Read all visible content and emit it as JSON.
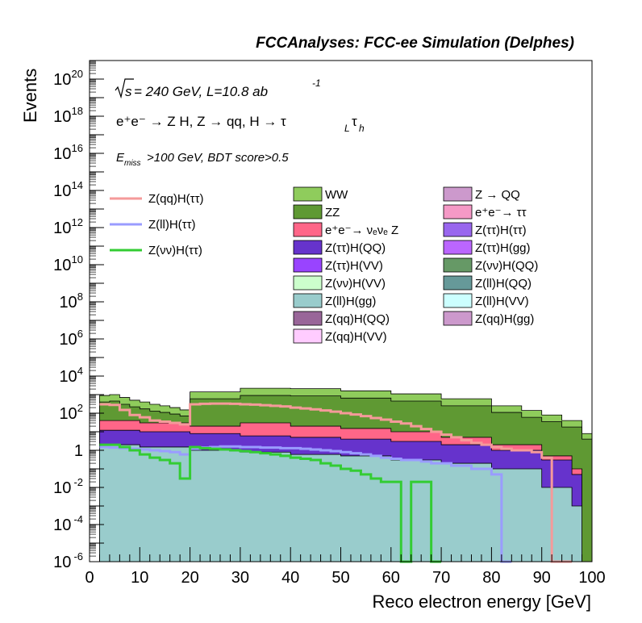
{
  "chart_data": {
    "type": "area",
    "title": "FCCAnalyses: FCC-ee Simulation (Delphes)",
    "xlabel": "Reco electron energy [GeV]",
    "ylabel": "Events",
    "xlim": [
      0,
      100
    ],
    "ylim": [
      1e-06,
      1e+21
    ],
    "log_y": true,
    "grid": false,
    "legend_position": "top",
    "x_ticks": [
      "0",
      "10",
      "20",
      "30",
      "40",
      "50",
      "60",
      "70",
      "80",
      "90",
      "100"
    ],
    "y_ticks": [
      {
        "base": "10",
        "exp": "-6"
      },
      {
        "base": "10",
        "exp": "-4"
      },
      {
        "base": "10",
        "exp": "-2"
      },
      {
        "base": "1",
        "exp": ""
      },
      {
        "base": "10",
        "exp": "2"
      },
      {
        "base": "10",
        "exp": "4"
      },
      {
        "base": "10",
        "exp": "6"
      },
      {
        "base": "10",
        "exp": "8"
      },
      {
        "base": "10",
        "exp": "10"
      },
      {
        "base": "10",
        "exp": "12"
      },
      {
        "base": "10",
        "exp": "14"
      },
      {
        "base": "10",
        "exp": "16"
      },
      {
        "base": "10",
        "exp": "18"
      },
      {
        "base": "10",
        "exp": "20"
      }
    ],
    "annotations": {
      "line1_sqrt": "s",
      "line1_text": " = 240 GeV, L=10.8 ab",
      "line1_exp": "-1",
      "line2_text": "e⁺e⁻ → Z H, Z → qq, H → τ",
      "line2_sub1": "L",
      "line2_tau": "τ",
      "line2_sub2": "h",
      "line3_E": "E",
      "line3_sub": "miss",
      "line3_text": ">100 GeV, BDT score>0.5"
    },
    "signal_legend": [
      {
        "name": "Z(qq)H(ττ)",
        "color": "#f59a9a"
      },
      {
        "name": "Z(ll)H(ττ)",
        "color": "#9a9cff"
      },
      {
        "name": "Z(νν)H(ττ)",
        "color": "#33cc33"
      }
    ],
    "background_legend": [
      {
        "name": "WW",
        "color": "#8fcc5c"
      },
      {
        "name": "Z → QQ",
        "color": "#cc99cc"
      },
      {
        "name": "ZZ",
        "color": "#5f9933"
      },
      {
        "name": "e⁺e⁻→ ττ",
        "color": "#f599c6"
      },
      {
        "name": "e⁺e⁻→ νₑνₑ Z",
        "color": "#ff6688"
      },
      {
        "name": "Z(ττ)H(ττ)",
        "color": "#9966ee"
      },
      {
        "name": "Z(ττ)H(QQ)",
        "color": "#6633cc"
      },
      {
        "name": "Z(ττ)H(gg)",
        "color": "#bb66ff"
      },
      {
        "name": "Z(ττ)H(VV)",
        "color": "#9944ff"
      },
      {
        "name": "Z(νν)H(QQ)",
        "color": "#669966"
      },
      {
        "name": "Z(νν)H(VV)",
        "color": "#ccffcc"
      },
      {
        "name": "Z(ll)H(QQ)",
        "color": "#669999"
      },
      {
        "name": "Z(ll)H(gg)",
        "color": "#99cccc"
      },
      {
        "name": "Z(ll)H(VV)",
        "color": "#ccffff"
      },
      {
        "name": "Z(qq)H(QQ)",
        "color": "#996699"
      },
      {
        "name": "Z(qq)H(gg)",
        "color": "#cc99cc"
      },
      {
        "name": "Z(qq)H(VV)",
        "color": "#ffccff"
      }
    ],
    "stack_envelopes": [
      {
        "name": "WW",
        "color": "#8fcc5c",
        "x": [
          2,
          4,
          6,
          8,
          10,
          12,
          14,
          16,
          18,
          20,
          30,
          40,
          50,
          60,
          70,
          80,
          86,
          90,
          94,
          98,
          100
        ],
        "y": [
          900,
          1000,
          700,
          500,
          400,
          300,
          250,
          200,
          150,
          1400,
          2200,
          2100,
          1600,
          1100,
          600,
          250,
          140,
          80,
          40,
          8,
          2
        ]
      },
      {
        "name": "ZZ",
        "color": "#5f9933",
        "x": [
          2,
          4,
          6,
          8,
          10,
          12,
          14,
          16,
          18,
          20,
          30,
          40,
          50,
          60,
          70,
          80,
          86,
          90,
          94,
          98,
          100
        ],
        "y": [
          400,
          450,
          300,
          220,
          170,
          130,
          110,
          90,
          70,
          600,
          900,
          850,
          650,
          450,
          250,
          110,
          60,
          35,
          18,
          4,
          1
        ]
      },
      {
        "name": "e⁺e⁻→ νₑνₑ Z",
        "color": "#ff6688",
        "x": [
          2,
          10,
          20,
          30,
          40,
          50,
          60,
          70,
          80,
          90,
          96
        ],
        "y": [
          40,
          30,
          20,
          30,
          20,
          15,
          10,
          5,
          2,
          0.5,
          0.1
        ]
      },
      {
        "name": "Z(ττ)H(QQ)",
        "color": "#6633cc",
        "x": [
          2,
          10,
          20,
          30,
          40,
          50,
          60,
          70,
          80,
          90,
          96
        ],
        "y": [
          12,
          10,
          8,
          6,
          5,
          4,
          3,
          2,
          1,
          0.3,
          0.05
        ]
      },
      {
        "name": "Z(ll)H(gg)",
        "color": "#99cccc",
        "x": [
          2,
          10,
          20,
          30,
          40,
          50,
          60,
          70,
          80,
          90,
          96
        ],
        "y": [
          2,
          1.5,
          1,
          0.8,
          0.6,
          0.5,
          0.3,
          0.2,
          0.1,
          0.01,
          0.001
        ]
      }
    ],
    "series": [
      {
        "name": "Z(qq)H(ττ)",
        "color": "#f59a9a",
        "x": [
          2,
          4,
          6,
          8,
          10,
          12,
          14,
          16,
          18,
          20,
          22,
          24,
          26,
          28,
          30,
          32,
          34,
          36,
          38,
          40,
          42,
          44,
          46,
          48,
          50,
          52,
          54,
          56,
          58,
          60,
          62,
          64,
          66,
          68,
          70,
          72,
          74,
          76,
          78,
          80,
          82,
          84,
          86,
          88,
          90,
          92,
          94
        ],
        "y": [
          300,
          280,
          150,
          80,
          60,
          40,
          35,
          30,
          25,
          300,
          320,
          330,
          330,
          320,
          300,
          290,
          270,
          250,
          230,
          200,
          180,
          160,
          140,
          120,
          100,
          85,
          70,
          55,
          45,
          35,
          28,
          20,
          14,
          10,
          7,
          5,
          3.5,
          2.5,
          2,
          1.5,
          1.2,
          1,
          1,
          0.8,
          0.4,
          1e-06,
          1e-06
        ]
      },
      {
        "name": "Z(ll)H(ττ)",
        "color": "#9a9cff",
        "x": [
          2,
          4,
          6,
          8,
          10,
          12,
          14,
          16,
          18,
          20,
          22,
          24,
          26,
          28,
          30,
          32,
          34,
          36,
          38,
          40,
          42,
          44,
          46,
          48,
          50,
          52,
          54,
          56,
          58,
          60,
          62,
          64,
          66,
          68,
          70,
          72,
          74,
          76,
          78,
          80,
          82
        ],
        "y": [
          1.5,
          1.4,
          1.3,
          1.2,
          1.1,
          1.0,
          0.9,
          0.8,
          0.6,
          1.2,
          1.4,
          1.5,
          1.6,
          1.6,
          1.5,
          1.5,
          1.4,
          1.4,
          1.3,
          1.3,
          1.2,
          1.1,
          1.0,
          0.9,
          0.8,
          0.7,
          0.6,
          0.5,
          0.4,
          0.35,
          0.3,
          0.3,
          0.25,
          0.2,
          0.2,
          0.15,
          0.15,
          0.1,
          0.1,
          0.05,
          1e-06
        ]
      },
      {
        "name": "Z(νν)H(ττ)",
        "color": "#33cc33",
        "x": [
          2,
          4,
          6,
          8,
          10,
          12,
          14,
          16,
          18,
          20,
          22,
          24,
          26,
          28,
          30,
          32,
          34,
          36,
          38,
          40,
          42,
          44,
          46,
          48,
          50,
          52,
          54,
          56,
          58,
          60,
          62,
          64,
          66,
          68
        ],
        "y": [
          2,
          2,
          1.5,
          1,
          0.6,
          0.4,
          0.3,
          0.2,
          0.03,
          1.5,
          1.3,
          1.2,
          1.1,
          1.0,
          0.9,
          0.8,
          0.7,
          0.6,
          0.5,
          0.4,
          0.35,
          0.3,
          0.2,
          0.15,
          0.1,
          0.08,
          0.05,
          0.03,
          0.02,
          0.02,
          1e-06,
          0.02,
          0.02,
          1e-06
        ]
      }
    ]
  }
}
